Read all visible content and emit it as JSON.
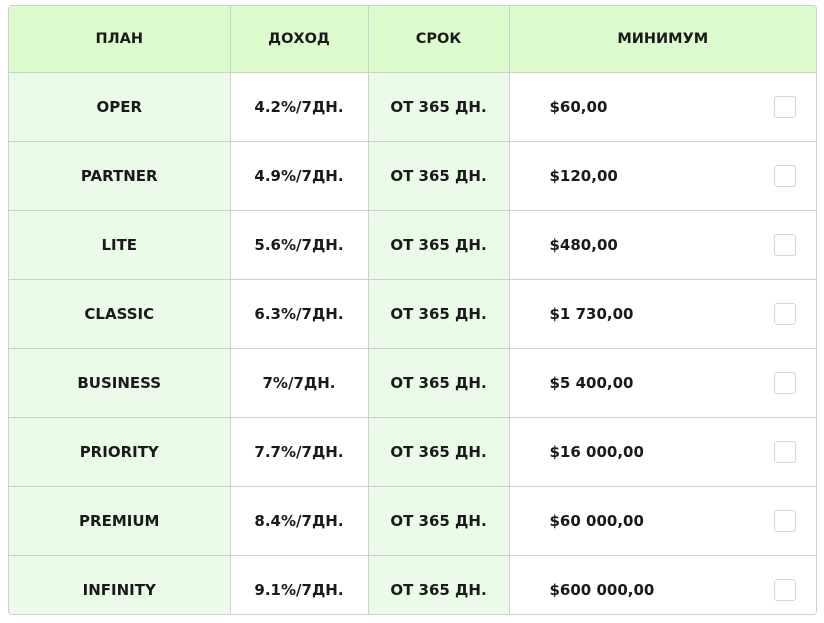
{
  "table": {
    "headers": {
      "plan": "ПЛАН",
      "income": "ДОХОД",
      "term": "СРОК",
      "minimum": "МИНИМУМ"
    },
    "rows": [
      {
        "plan": "OPER",
        "income": "4.2%/7ДН.",
        "term": "ОТ 365 ДН.",
        "minimum": "$60,00",
        "checked": false
      },
      {
        "plan": "PARTNER",
        "income": "4.9%/7ДН.",
        "term": "ОТ 365 ДН.",
        "minimum": "$120,00",
        "checked": false
      },
      {
        "plan": "LITE",
        "income": "5.6%/7ДН.",
        "term": "ОТ 365 ДН.",
        "minimum": "$480,00",
        "checked": false
      },
      {
        "plan": "CLASSIC",
        "income": "6.3%/7ДН.",
        "term": "ОТ 365 ДН.",
        "minimum": "$1 730,00",
        "checked": false
      },
      {
        "plan": "BUSINESS",
        "income": "7%/7ДН.",
        "term": "ОТ 365 ДН.",
        "minimum": "$5 400,00",
        "checked": false
      },
      {
        "plan": "PRIORITY",
        "income": "7.7%/7ДН.",
        "term": "ОТ 365 ДН.",
        "minimum": "$16 000,00",
        "checked": false
      },
      {
        "plan": "PREMIUM",
        "income": "8.4%/7ДН.",
        "term": "ОТ 365 ДН.",
        "minimum": "$60 000,00",
        "checked": false
      },
      {
        "plan": "INFINITY",
        "income": "9.1%/7ДН.",
        "term": "ОТ 365 ДН.",
        "minimum": "$600 000,00",
        "checked": false
      }
    ]
  },
  "colors": {
    "header_bg": "#ddfccd",
    "accent_col_bg": "#eafbe8",
    "border": "#cfcfcf"
  },
  "icons": {
    "row_select": "checkbox-icon"
  }
}
